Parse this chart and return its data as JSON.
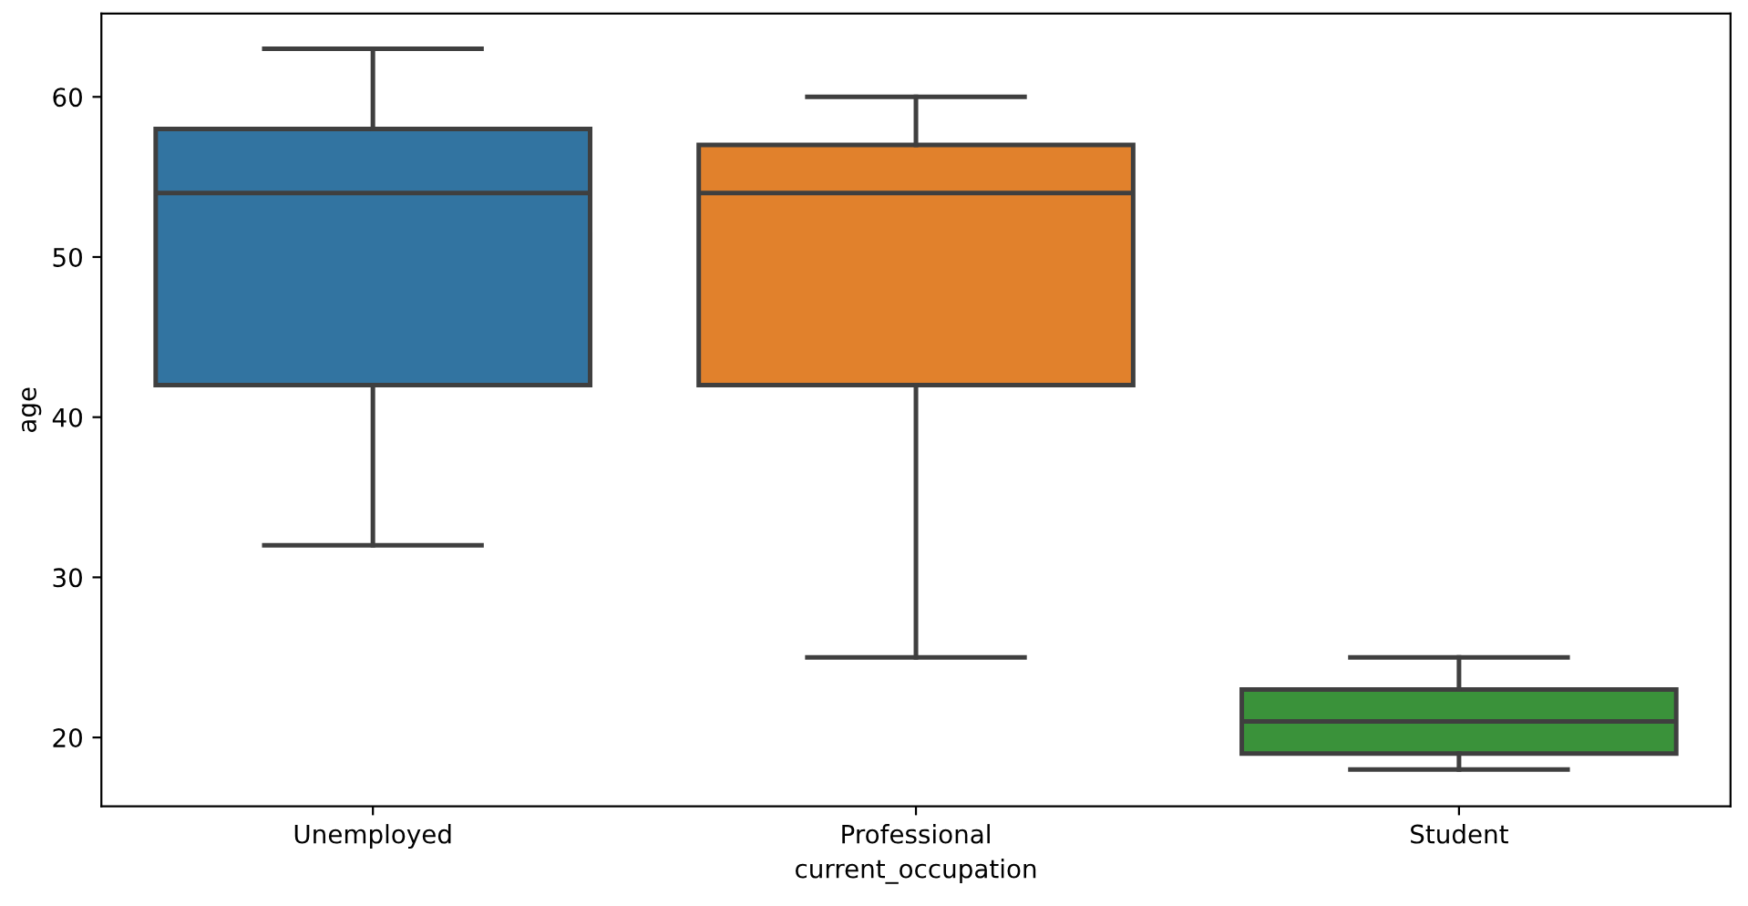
{
  "chart_data": {
    "type": "box",
    "xlabel": "current_occupation",
    "ylabel": "age",
    "categories": [
      "Unemployed",
      "Professional",
      "Student"
    ],
    "colors": [
      "#3274a1",
      "#e1812c",
      "#3a923a"
    ],
    "boxes": [
      {
        "low": 32,
        "q1": 42,
        "median": 54,
        "q3": 58,
        "high": 63
      },
      {
        "low": 25,
        "q1": 42,
        "median": 54,
        "q3": 57,
        "high": 60
      },
      {
        "low": 18,
        "q1": 19,
        "median": 21,
        "q3": 23,
        "high": 25
      }
    ],
    "ylim": [
      15.7,
      65.2
    ],
    "yticks": [
      20,
      30,
      40,
      50,
      60
    ],
    "grid": false,
    "legend": false
  }
}
